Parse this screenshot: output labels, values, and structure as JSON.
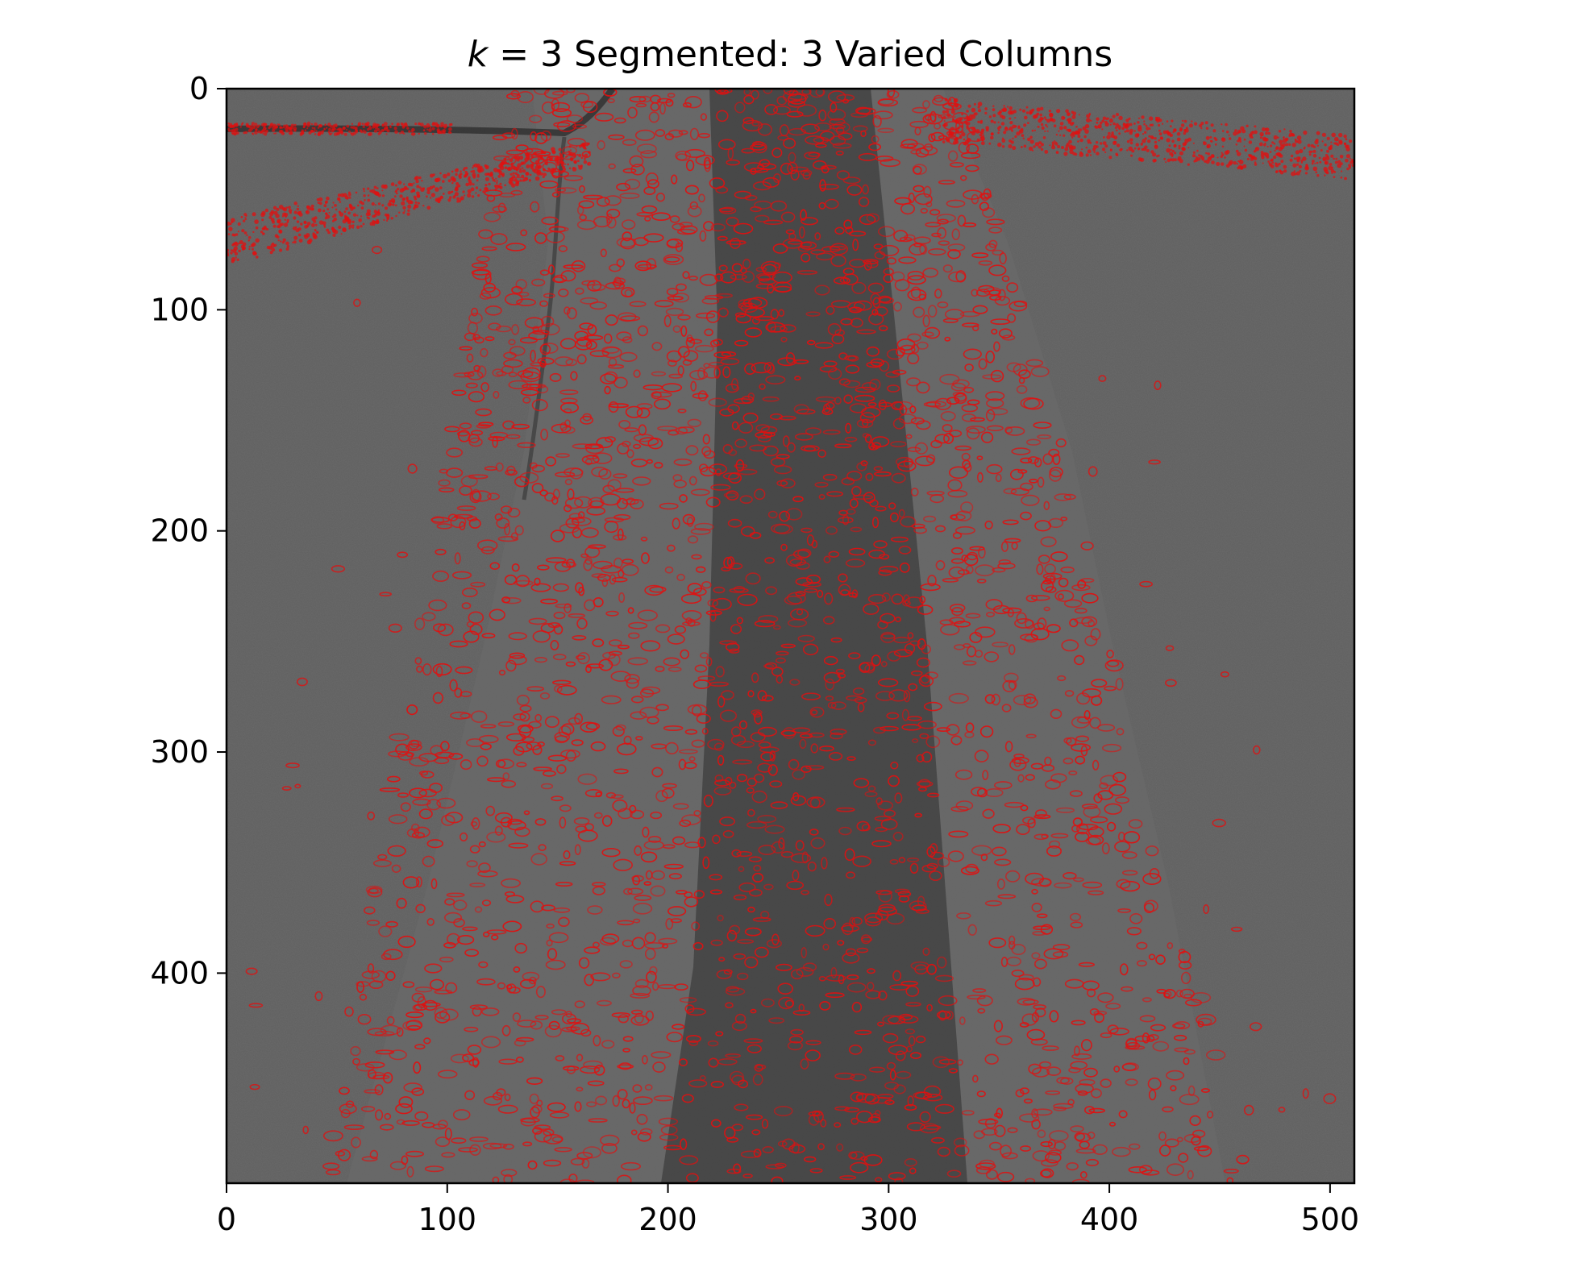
{
  "title": {
    "k_symbol": "k",
    "rest": " = 3 Segmented: 3 Varied Columns"
  },
  "image": {
    "description_colors": {
      "background_gray": "#5e5e5e",
      "overlay_red": "#e01010",
      "dark_stripe": "#1e1e1e"
    }
  },
  "axes": {
    "x_ticks": [
      "0",
      "100",
      "200",
      "300",
      "400",
      "500"
    ],
    "y_ticks": [
      "0",
      "100",
      "200",
      "300",
      "400"
    ],
    "x_tick_values": [
      0,
      100,
      200,
      300,
      400,
      500
    ],
    "y_tick_values": [
      0,
      100,
      200,
      300,
      400
    ],
    "xlim": [
      0,
      511
    ],
    "ylim": [
      495,
      0
    ]
  }
}
